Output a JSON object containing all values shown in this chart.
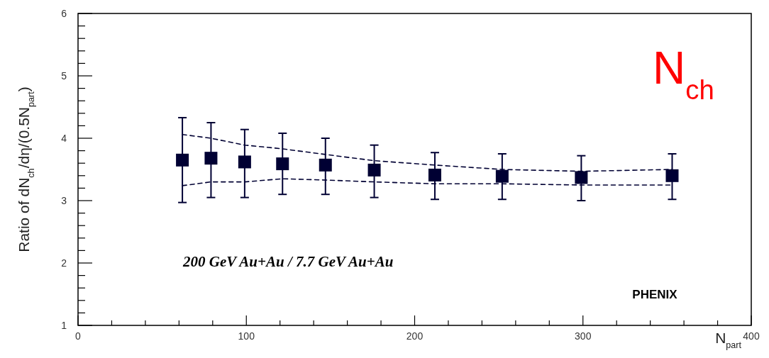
{
  "chart_data": {
    "type": "scatter",
    "xlabel": "N$_{part}$",
    "ylabel": "Ratio of dN$_{ch}$/dη/(0.5N$_{part}$)",
    "xlim": [
      0,
      400
    ],
    "ylim": [
      1,
      6
    ],
    "xticks": [
      0,
      {
        "value": 20,
        "label": null
      },
      {
        "value": 40,
        "label": null
      },
      {
        "value": 60,
        "label": null
      },
      {
        "value": 80,
        "label": null
      },
      100,
      {
        "value": 120,
        "label": null
      },
      {
        "value": 140,
        "label": null
      },
      {
        "value": 160,
        "label": null
      },
      {
        "value": 180,
        "label": null
      },
      200,
      {
        "value": 220,
        "label": null
      },
      {
        "value": 240,
        "label": null
      },
      {
        "value": 260,
        "label": null
      },
      {
        "value": 280,
        "label": null
      },
      300,
      {
        "value": 320,
        "label": null
      },
      {
        "value": 340,
        "label": null
      },
      {
        "value": 360,
        "label": null
      },
      {
        "value": 380,
        "label": null
      },
      400
    ],
    "yticks": [
      1,
      {
        "value": 1.2,
        "label": null
      },
      {
        "value": 1.4,
        "label": null
      },
      {
        "value": 1.6,
        "label": null
      },
      {
        "value": 1.8,
        "label": null
      },
      2,
      {
        "value": 2.2,
        "label": null
      },
      {
        "value": 2.4,
        "label": null
      },
      {
        "value": 2.6,
        "label": null
      },
      {
        "value": 2.8,
        "label": null
      },
      3,
      {
        "value": 3.2,
        "label": null
      },
      {
        "value": 3.4,
        "label": null
      },
      {
        "value": 3.6,
        "label": null
      },
      {
        "value": 3.8,
        "label": null
      },
      4,
      {
        "value": 4.2,
        "label": null
      },
      {
        "value": 4.4,
        "label": null
      },
      {
        "value": 4.6,
        "label": null
      },
      {
        "value": 4.8,
        "label": null
      },
      5,
      {
        "value": 5.2,
        "label": null
      },
      {
        "value": 5.4,
        "label": null
      },
      {
        "value": 5.6,
        "label": null
      },
      {
        "value": 5.8,
        "label": null
      },
      6
    ],
    "x": [
      62,
      79,
      99,
      121.5,
      147,
      176,
      212,
      252,
      299,
      353
    ],
    "series": [
      {
        "color": "#000033",
        "marker": "square",
        "values": [
          3.65,
          3.68,
          3.62,
          3.59,
          3.57,
          3.49,
          3.41,
          3.39,
          3.37,
          3.4
        ],
        "errors": [
          [
            2.97,
            4.33
          ],
          [
            3.05,
            4.25
          ],
          [
            3.05,
            4.14
          ],
          [
            3.1,
            4.08
          ],
          [
            3.1,
            4.0
          ],
          [
            3.05,
            3.89
          ],
          [
            3.02,
            3.77
          ],
          [
            3.02,
            3.75
          ],
          [
            3.0,
            3.72
          ],
          [
            3.02,
            3.75
          ]
        ]
      },
      {
        "type": "line",
        "color": "#000033",
        "line_style": "dashed",
        "values": [
          4.06,
          4.0,
          3.89,
          3.83,
          3.74,
          3.64,
          3.57,
          3.5,
          3.47,
          3.5
        ]
      },
      {
        "type": "line",
        "color": "#000033",
        "line_style": "dashed",
        "values": [
          3.24,
          3.3,
          3.3,
          3.35,
          3.33,
          3.3,
          3.27,
          3.27,
          3.25,
          3.25
        ]
      }
    ],
    "annotations": [
      "200 GeV Au+Au / 7.7 GeV Au+Au",
      "PHENIX",
      "N$_{ch}$"
    ]
  }
}
